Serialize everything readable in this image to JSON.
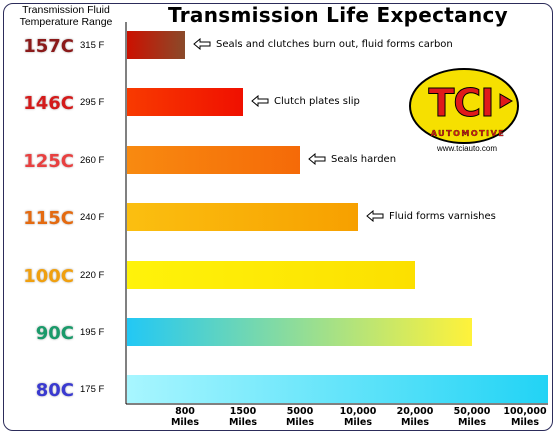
{
  "chart_data": {
    "type": "bar",
    "orientation": "horizontal",
    "title": "Transmission Life Expectancy",
    "ylabel": "Transmission Fluid Temperature Range",
    "rows": [
      {
        "celsius": "157C",
        "fahrenheit": "315 F",
        "value": "800 Miles",
        "note": "Seals and clutches burn out, fluid forms carbon",
        "color": "#cc1100",
        "color2": "#8a4a2a"
      },
      {
        "celsius": "146C",
        "fahrenheit": "295 F",
        "value": "1500 Miles",
        "note": "Clutch plates slip",
        "color": "#f83a00",
        "color2": "#f01000"
      },
      {
        "celsius": "125C",
        "fahrenheit": "260 F",
        "value": "5000 Miles",
        "note": "Seals harden",
        "color": "#f88a10",
        "color2": "#f56a08"
      },
      {
        "celsius": "115C",
        "fahrenheit": "240 F",
        "value": "10,000 Miles",
        "note": "Fluid forms varnishes",
        "color": "#fbbf10",
        "color2": "#f7a000"
      },
      {
        "celsius": "100C",
        "fahrenheit": "220 F",
        "value": "20,000 Miles",
        "note": "",
        "color": "#fff30a",
        "color2": "#fce000"
      },
      {
        "celsius": "90C",
        "fahrenheit": "195 F",
        "value": "50,000 Miles",
        "note": "",
        "color": "#22c8f5",
        "color2": "#fff23a"
      },
      {
        "celsius": "80C",
        "fahrenheit": "175 F",
        "value": "100,000 Miles",
        "note": "",
        "color": "#a8f6ff",
        "color2": "#22d3f5"
      }
    ],
    "categories": [
      "800 Miles",
      "1500 Miles",
      "5000 Miles",
      "10,000 Miles",
      "20,000 Miles",
      "50,000 Miles",
      "100,000 Miles"
    ],
    "label_colors": [
      "#8b1a1a",
      "#d41a1a",
      "#e84040",
      "#e46a10",
      "#f0a010",
      "#1a9a6a",
      "#3a3ad0"
    ],
    "ticks": [
      {
        "top": "800",
        "bottom": "Miles"
      },
      {
        "top": "1500",
        "bottom": "Miles"
      },
      {
        "top": "5000",
        "bottom": "Miles"
      },
      {
        "top": "10,000",
        "bottom": "Miles"
      },
      {
        "top": "20,000",
        "bottom": "Miles"
      },
      {
        "top": "50,000",
        "bottom": "Miles"
      },
      {
        "top": "100,000",
        "bottom": "Miles"
      }
    ],
    "legend": "none",
    "grid": false
  },
  "logo": {
    "brand": "TCI",
    "tagline": "AUTOMOTIVE",
    "url": "www.tciauto.com",
    "colors": {
      "badge": "#f6e000",
      "text": "#e01a1a",
      "outline": "#000000"
    }
  }
}
